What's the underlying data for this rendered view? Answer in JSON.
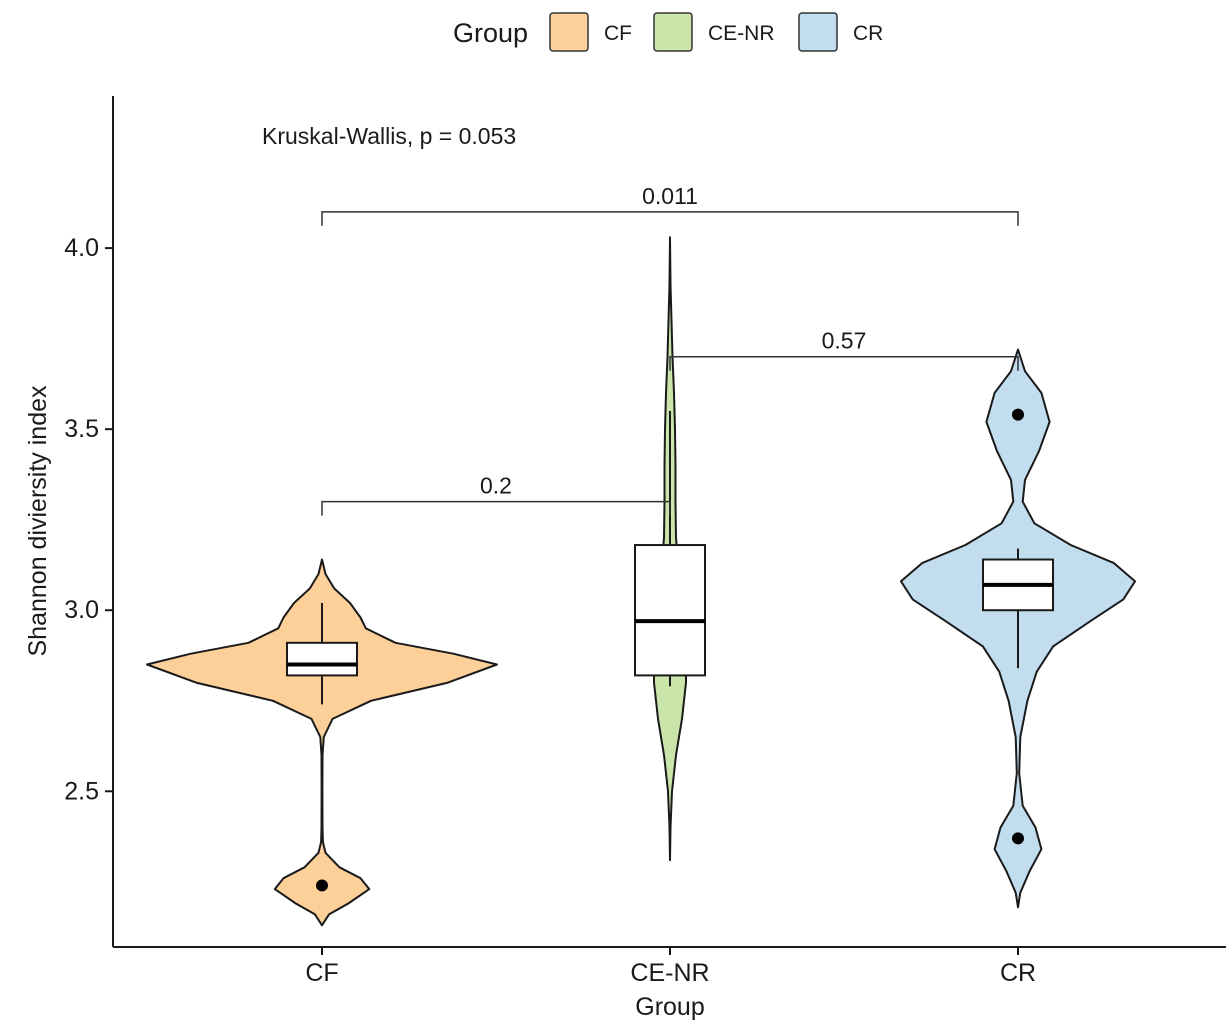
{
  "chart_data": {
    "type": "violin",
    "xlabel": "Group",
    "ylabel": "Shannon diviersity index",
    "categories": [
      "CF",
      "CE-NR",
      "CR"
    ],
    "ylim": [
      2.07,
      4.42
    ],
    "yticks": [
      2.5,
      3.0,
      3.5,
      4.0
    ],
    "ytick_labels": [
      "2.5",
      "3.0",
      "3.5",
      "4.0"
    ],
    "grid": false,
    "legend": {
      "title": "Group",
      "position": "top",
      "entries": [
        {
          "label": "CF",
          "color": "#FDD09A"
        },
        {
          "label": "CE-NR",
          "color": "#C9E5A9"
        },
        {
          "label": "CR",
          "color": "#C2DDEE"
        }
      ]
    },
    "violins": [
      {
        "name": "CF",
        "color": "#FDD09A",
        "ymin": 2.13,
        "ymax": 3.14,
        "density": [
          [
            2.13,
            0.0
          ],
          [
            2.16,
            0.04
          ],
          [
            2.19,
            0.15
          ],
          [
            2.23,
            0.27
          ],
          [
            2.26,
            0.22
          ],
          [
            2.29,
            0.1
          ],
          [
            2.33,
            0.02
          ],
          [
            2.36,
            0.005
          ],
          [
            2.4,
            0.003
          ],
          [
            2.5,
            0.002
          ],
          [
            2.6,
            0.003
          ],
          [
            2.65,
            0.01
          ],
          [
            2.7,
            0.06
          ],
          [
            2.75,
            0.28
          ],
          [
            2.8,
            0.72
          ],
          [
            2.85,
            1.0
          ],
          [
            2.88,
            0.75
          ],
          [
            2.91,
            0.42
          ],
          [
            2.95,
            0.25
          ],
          [
            2.98,
            0.22
          ],
          [
            3.02,
            0.16
          ],
          [
            3.06,
            0.07
          ],
          [
            3.1,
            0.02
          ],
          [
            3.14,
            0.0
          ]
        ],
        "box": {
          "lower_whisker": 2.74,
          "q1": 2.82,
          "median": 2.85,
          "q3": 2.91,
          "upper_whisker": 3.02
        },
        "outliers": [
          2.24
        ]
      },
      {
        "name": "CE-NR",
        "color": "#C9E5A9",
        "ymin": 2.31,
        "ymax": 4.03,
        "density": [
          [
            2.31,
            0.0
          ],
          [
            2.4,
            0.01
          ],
          [
            2.5,
            0.04
          ],
          [
            2.6,
            0.12
          ],
          [
            2.7,
            0.24
          ],
          [
            2.8,
            0.32
          ],
          [
            2.9,
            0.32
          ],
          [
            3.0,
            0.26
          ],
          [
            3.1,
            0.18
          ],
          [
            3.2,
            0.12
          ],
          [
            3.3,
            0.11
          ],
          [
            3.4,
            0.11
          ],
          [
            3.5,
            0.1
          ],
          [
            3.6,
            0.08
          ],
          [
            3.7,
            0.05
          ],
          [
            3.8,
            0.03
          ],
          [
            3.9,
            0.01
          ],
          [
            4.03,
            0.0
          ]
        ],
        "box": {
          "lower_whisker": 2.79,
          "q1": 2.82,
          "median": 2.97,
          "q3": 3.18,
          "upper_whisker": 3.55
        },
        "outliers": []
      },
      {
        "name": "CR",
        "color": "#C2DDEE",
        "ymin": 2.18,
        "ymax": 3.72,
        "density": [
          [
            2.18,
            0.0
          ],
          [
            2.22,
            0.02
          ],
          [
            2.28,
            0.1
          ],
          [
            2.34,
            0.2
          ],
          [
            2.4,
            0.15
          ],
          [
            2.46,
            0.04
          ],
          [
            2.55,
            0.01
          ],
          [
            2.65,
            0.02
          ],
          [
            2.75,
            0.08
          ],
          [
            2.83,
            0.16
          ],
          [
            2.9,
            0.3
          ],
          [
            2.97,
            0.62
          ],
          [
            3.03,
            0.9
          ],
          [
            3.08,
            1.0
          ],
          [
            3.13,
            0.82
          ],
          [
            3.18,
            0.45
          ],
          [
            3.24,
            0.14
          ],
          [
            3.3,
            0.04
          ],
          [
            3.36,
            0.06
          ],
          [
            3.44,
            0.18
          ],
          [
            3.52,
            0.27
          ],
          [
            3.6,
            0.2
          ],
          [
            3.66,
            0.06
          ],
          [
            3.72,
            0.0
          ]
        ],
        "box": {
          "lower_whisker": 2.84,
          "q1": 3.0,
          "median": 3.07,
          "q3": 3.14,
          "upper_whisker": 3.17
        },
        "outliers": [
          3.54,
          2.37
        ]
      }
    ],
    "comparisons": [
      {
        "groups": [
          "CF",
          "CE-NR"
        ],
        "y": 3.3,
        "label": "0.2"
      },
      {
        "groups": [
          "CE-NR",
          "CR"
        ],
        "y": 3.7,
        "label": "0.57"
      },
      {
        "groups": [
          "CF",
          "CR"
        ],
        "y": 4.1,
        "label": "0.011"
      }
    ],
    "test_annotation": "Kruskal-Wallis, p = 0.053"
  }
}
